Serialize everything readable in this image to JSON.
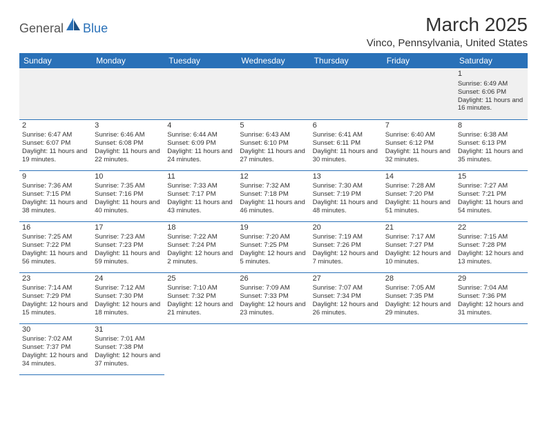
{
  "logo": {
    "general": "General",
    "blue": "Blue"
  },
  "title": "March 2025",
  "location": "Vinco, Pennsylvania, United States",
  "day_headers": [
    "Sunday",
    "Monday",
    "Tuesday",
    "Wednesday",
    "Thursday",
    "Friday",
    "Saturday"
  ],
  "colors": {
    "header_bg": "#2a71b8",
    "header_text": "#ffffff",
    "cell_border": "#2a71b8",
    "blank_bg": "#f0f0f0",
    "logo_blue": "#2a71b8",
    "text": "#333333"
  },
  "weeks": [
    [
      null,
      null,
      null,
      null,
      null,
      null,
      {
        "n": "1",
        "sr": "Sunrise: 6:49 AM",
        "ss": "Sunset: 6:06 PM",
        "dl": "Daylight: 11 hours and 16 minutes."
      }
    ],
    [
      {
        "n": "2",
        "sr": "Sunrise: 6:47 AM",
        "ss": "Sunset: 6:07 PM",
        "dl": "Daylight: 11 hours and 19 minutes."
      },
      {
        "n": "3",
        "sr": "Sunrise: 6:46 AM",
        "ss": "Sunset: 6:08 PM",
        "dl": "Daylight: 11 hours and 22 minutes."
      },
      {
        "n": "4",
        "sr": "Sunrise: 6:44 AM",
        "ss": "Sunset: 6:09 PM",
        "dl": "Daylight: 11 hours and 24 minutes."
      },
      {
        "n": "5",
        "sr": "Sunrise: 6:43 AM",
        "ss": "Sunset: 6:10 PM",
        "dl": "Daylight: 11 hours and 27 minutes."
      },
      {
        "n": "6",
        "sr": "Sunrise: 6:41 AM",
        "ss": "Sunset: 6:11 PM",
        "dl": "Daylight: 11 hours and 30 minutes."
      },
      {
        "n": "7",
        "sr": "Sunrise: 6:40 AM",
        "ss": "Sunset: 6:12 PM",
        "dl": "Daylight: 11 hours and 32 minutes."
      },
      {
        "n": "8",
        "sr": "Sunrise: 6:38 AM",
        "ss": "Sunset: 6:13 PM",
        "dl": "Daylight: 11 hours and 35 minutes."
      }
    ],
    [
      {
        "n": "9",
        "sr": "Sunrise: 7:36 AM",
        "ss": "Sunset: 7:15 PM",
        "dl": "Daylight: 11 hours and 38 minutes."
      },
      {
        "n": "10",
        "sr": "Sunrise: 7:35 AM",
        "ss": "Sunset: 7:16 PM",
        "dl": "Daylight: 11 hours and 40 minutes."
      },
      {
        "n": "11",
        "sr": "Sunrise: 7:33 AM",
        "ss": "Sunset: 7:17 PM",
        "dl": "Daylight: 11 hours and 43 minutes."
      },
      {
        "n": "12",
        "sr": "Sunrise: 7:32 AM",
        "ss": "Sunset: 7:18 PM",
        "dl": "Daylight: 11 hours and 46 minutes."
      },
      {
        "n": "13",
        "sr": "Sunrise: 7:30 AM",
        "ss": "Sunset: 7:19 PM",
        "dl": "Daylight: 11 hours and 48 minutes."
      },
      {
        "n": "14",
        "sr": "Sunrise: 7:28 AM",
        "ss": "Sunset: 7:20 PM",
        "dl": "Daylight: 11 hours and 51 minutes."
      },
      {
        "n": "15",
        "sr": "Sunrise: 7:27 AM",
        "ss": "Sunset: 7:21 PM",
        "dl": "Daylight: 11 hours and 54 minutes."
      }
    ],
    [
      {
        "n": "16",
        "sr": "Sunrise: 7:25 AM",
        "ss": "Sunset: 7:22 PM",
        "dl": "Daylight: 11 hours and 56 minutes."
      },
      {
        "n": "17",
        "sr": "Sunrise: 7:23 AM",
        "ss": "Sunset: 7:23 PM",
        "dl": "Daylight: 11 hours and 59 minutes."
      },
      {
        "n": "18",
        "sr": "Sunrise: 7:22 AM",
        "ss": "Sunset: 7:24 PM",
        "dl": "Daylight: 12 hours and 2 minutes."
      },
      {
        "n": "19",
        "sr": "Sunrise: 7:20 AM",
        "ss": "Sunset: 7:25 PM",
        "dl": "Daylight: 12 hours and 5 minutes."
      },
      {
        "n": "20",
        "sr": "Sunrise: 7:19 AM",
        "ss": "Sunset: 7:26 PM",
        "dl": "Daylight: 12 hours and 7 minutes."
      },
      {
        "n": "21",
        "sr": "Sunrise: 7:17 AM",
        "ss": "Sunset: 7:27 PM",
        "dl": "Daylight: 12 hours and 10 minutes."
      },
      {
        "n": "22",
        "sr": "Sunrise: 7:15 AM",
        "ss": "Sunset: 7:28 PM",
        "dl": "Daylight: 12 hours and 13 minutes."
      }
    ],
    [
      {
        "n": "23",
        "sr": "Sunrise: 7:14 AM",
        "ss": "Sunset: 7:29 PM",
        "dl": "Daylight: 12 hours and 15 minutes."
      },
      {
        "n": "24",
        "sr": "Sunrise: 7:12 AM",
        "ss": "Sunset: 7:30 PM",
        "dl": "Daylight: 12 hours and 18 minutes."
      },
      {
        "n": "25",
        "sr": "Sunrise: 7:10 AM",
        "ss": "Sunset: 7:32 PM",
        "dl": "Daylight: 12 hours and 21 minutes."
      },
      {
        "n": "26",
        "sr": "Sunrise: 7:09 AM",
        "ss": "Sunset: 7:33 PM",
        "dl": "Daylight: 12 hours and 23 minutes."
      },
      {
        "n": "27",
        "sr": "Sunrise: 7:07 AM",
        "ss": "Sunset: 7:34 PM",
        "dl": "Daylight: 12 hours and 26 minutes."
      },
      {
        "n": "28",
        "sr": "Sunrise: 7:05 AM",
        "ss": "Sunset: 7:35 PM",
        "dl": "Daylight: 12 hours and 29 minutes."
      },
      {
        "n": "29",
        "sr": "Sunrise: 7:04 AM",
        "ss": "Sunset: 7:36 PM",
        "dl": "Daylight: 12 hours and 31 minutes."
      }
    ],
    [
      {
        "n": "30",
        "sr": "Sunrise: 7:02 AM",
        "ss": "Sunset: 7:37 PM",
        "dl": "Daylight: 12 hours and 34 minutes."
      },
      {
        "n": "31",
        "sr": "Sunrise: 7:01 AM",
        "ss": "Sunset: 7:38 PM",
        "dl": "Daylight: 12 hours and 37 minutes."
      },
      null,
      null,
      null,
      null,
      null
    ]
  ]
}
